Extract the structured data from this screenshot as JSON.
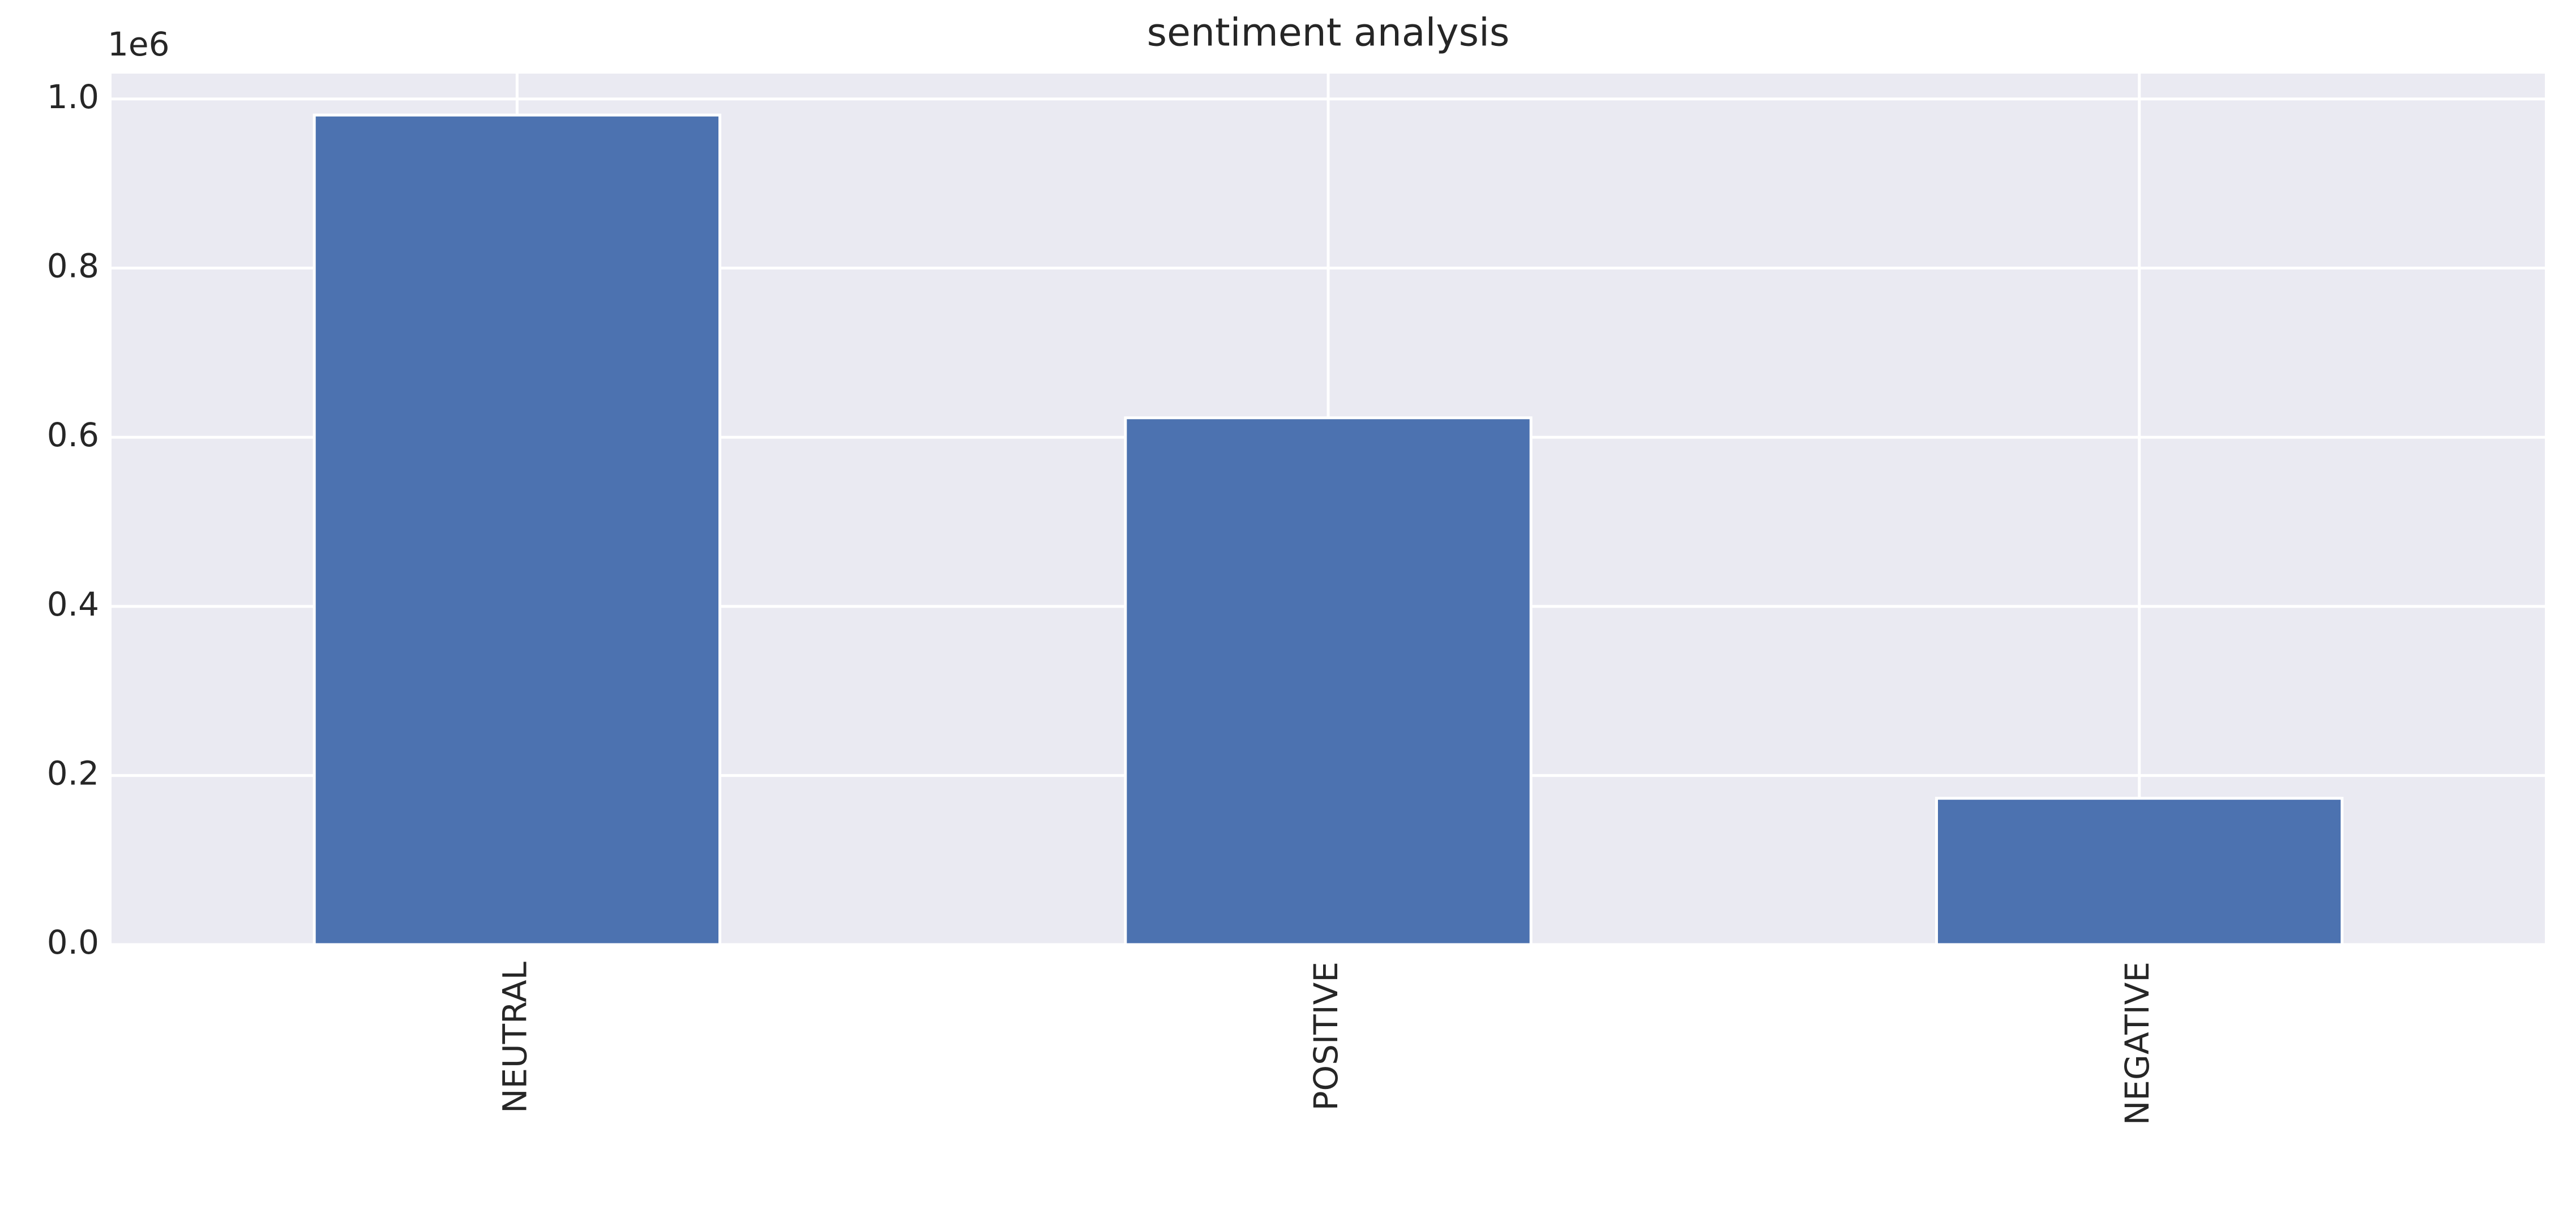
{
  "chart_data": {
    "type": "bar",
    "title": "sentiment analysis",
    "y_offset_label": "1e6",
    "categories": [
      "NEUTRAL",
      "POSITIVE",
      "NEGATIVE"
    ],
    "values": [
      0.981,
      0.623,
      0.173
    ],
    "color": "#4c72b0",
    "ylim": [
      0,
      1.03
    ],
    "yticks": [
      {
        "value": 0,
        "label": "0.0"
      },
      0.2,
      0.4,
      0.6,
      0.8,
      {
        "value": 1,
        "label": "1.0"
      }
    ],
    "grid": true
  }
}
